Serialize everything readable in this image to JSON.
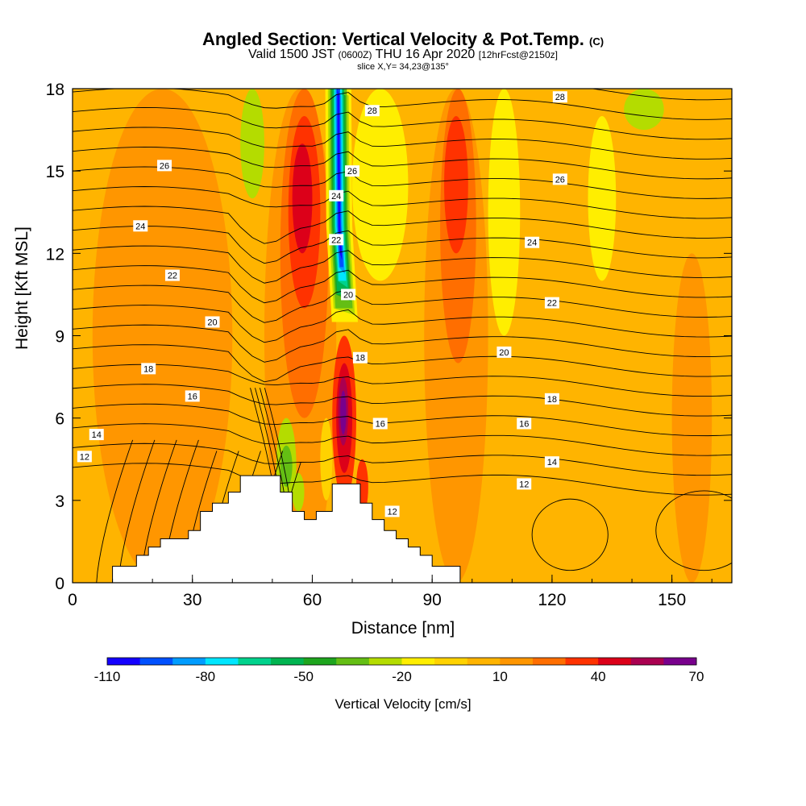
{
  "title": "Angled Section: Vertical Velocity & Pot.Temp.",
  "title_suffix": "(C)",
  "subtitle_main_a": "Valid 1500 JST",
  "subtitle_small_a": "(0600Z)",
  "subtitle_main_b": "THU 16 Apr 2020",
  "subtitle_small_b": "[12hrFcst@2150z]",
  "slice_label": "slice X,Y= 34,23@135°",
  "chart_data": {
    "type": "heatmap",
    "xlabel": "Distance [nm]",
    "ylabel": "Height [Kft MSL]",
    "xlim": [
      0,
      165
    ],
    "ylim": [
      0,
      18
    ],
    "x_ticks": [
      0,
      30,
      60,
      90,
      120,
      150
    ],
    "y_ticks": [
      0,
      3,
      6,
      9,
      12,
      15,
      18
    ],
    "colorbar": {
      "label": "Vertical Velocity [cm/s]",
      "tick_labels": [
        "-110",
        "-80",
        "-50",
        "-20",
        "10",
        "40",
        "70"
      ],
      "tick_values": [
        -110,
        -80,
        -50,
        -20,
        10,
        40,
        70
      ],
      "boundaries": [
        -110,
        -100,
        -90,
        -80,
        -70,
        -60,
        -50,
        -40,
        -30,
        -20,
        -10,
        0,
        10,
        20,
        30,
        40,
        50,
        60,
        70
      ],
      "colors": [
        "#1400ff",
        "#0050ff",
        "#009cff",
        "#00e6ff",
        "#00d28c",
        "#00b450",
        "#1ea51e",
        "#64be14",
        "#b4dc00",
        "#ffee00",
        "#ffd200",
        "#ffb400",
        "#ff9600",
        "#ff6e00",
        "#ff3200",
        "#dc0019",
        "#aa0050",
        "#78008c"
      ]
    },
    "shaded_field": "Vertical Velocity [cm/s]",
    "terrain_profile": [
      [
        10,
        0
      ],
      [
        10,
        0.6
      ],
      [
        16,
        0.6
      ],
      [
        16,
        1
      ],
      [
        19,
        1
      ],
      [
        19,
        1.3
      ],
      [
        22,
        1.3
      ],
      [
        22,
        1.6
      ],
      [
        29,
        1.6
      ],
      [
        29,
        1.9
      ],
      [
        32,
        1.9
      ],
      [
        32,
        2.6
      ],
      [
        35,
        2.6
      ],
      [
        35,
        2.9
      ],
      [
        39,
        2.9
      ],
      [
        39,
        3.3
      ],
      [
        42,
        3.3
      ],
      [
        42,
        3.9
      ],
      [
        52,
        3.9
      ],
      [
        52,
        3.3
      ],
      [
        55,
        3.3
      ],
      [
        55,
        2.6
      ],
      [
        58,
        2.6
      ],
      [
        58,
        2.3
      ],
      [
        61,
        2.3
      ],
      [
        61,
        2.6
      ],
      [
        65,
        2.6
      ],
      [
        65,
        3.6
      ],
      [
        72,
        3.6
      ],
      [
        72,
        2.9
      ],
      [
        75,
        2.9
      ],
      [
        75,
        2.3
      ],
      [
        78,
        2.3
      ],
      [
        78,
        1.9
      ],
      [
        81,
        1.9
      ],
      [
        81,
        1.6
      ],
      [
        84,
        1.6
      ],
      [
        84,
        1.3
      ],
      [
        87,
        1.3
      ],
      [
        87,
        1
      ],
      [
        90,
        1
      ],
      [
        90,
        0.6
      ],
      [
        97,
        0.6
      ],
      [
        97,
        0
      ]
    ],
    "contour_field": "Potential Temperature (C)",
    "contour_labels": [
      {
        "value": "28",
        "x": 75,
        "y": 17.2
      },
      {
        "value": "28",
        "x": 122,
        "y": 17.7
      },
      {
        "value": "26",
        "x": 23,
        "y": 15.2
      },
      {
        "value": "26",
        "x": 70,
        "y": 15
      },
      {
        "value": "26",
        "x": 122,
        "y": 14.7
      },
      {
        "value": "24",
        "x": 17,
        "y": 13
      },
      {
        "value": "24",
        "x": 66,
        "y": 14.1
      },
      {
        "value": "24",
        "x": 115,
        "y": 12.4
      },
      {
        "value": "22",
        "x": 25,
        "y": 11.2
      },
      {
        "value": "22",
        "x": 66,
        "y": 12.5
      },
      {
        "value": "22",
        "x": 120,
        "y": 10.2
      },
      {
        "value": "20",
        "x": 35,
        "y": 9.5
      },
      {
        "value": "20",
        "x": 69,
        "y": 10.5
      },
      {
        "value": "20",
        "x": 108,
        "y": 8.4
      },
      {
        "value": "18",
        "x": 19,
        "y": 7.8
      },
      {
        "value": "18",
        "x": 72,
        "y": 8.2
      },
      {
        "value": "18",
        "x": 120,
        "y": 6.7
      },
      {
        "value": "16",
        "x": 30,
        "y": 6.8
      },
      {
        "value": "16",
        "x": 77,
        "y": 5.8
      },
      {
        "value": "16",
        "x": 113,
        "y": 5.8
      },
      {
        "value": "14",
        "x": 6,
        "y": 5.4
      },
      {
        "value": "14",
        "x": 120,
        "y": 4.4
      },
      {
        "value": "12",
        "x": 3,
        "y": 4.6
      },
      {
        "value": "12",
        "x": 113,
        "y": 3.6
      },
      {
        "value": "12",
        "x": 80,
        "y": 2.6
      }
    ]
  }
}
